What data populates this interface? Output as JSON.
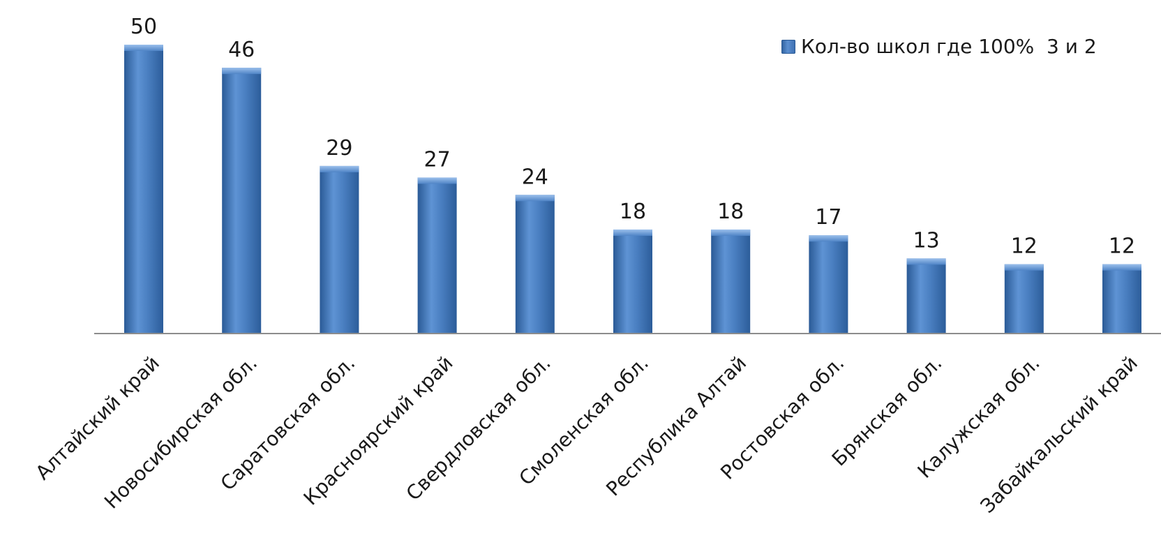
{
  "chart_data": {
    "type": "bar",
    "categories": [
      "Алтайский край",
      "Новосибирская обл.",
      "Саратовская обл.",
      "Красноярский край",
      "Свердловская обл.",
      "Смоленская обл.",
      "Республика Алтай",
      "Ростовская обл.",
      "Брянская обл.",
      "Калужская обл.",
      "Забайкальский край"
    ],
    "series": [
      {
        "name": "Кол-во школ где 100%  3 и 2",
        "values": [
          50,
          46,
          29,
          27,
          24,
          18,
          18,
          17,
          13,
          12,
          12
        ]
      }
    ],
    "ylim": [
      0,
      50
    ],
    "grid": false,
    "legend": "top-right",
    "bar_color": "#4a7fc1"
  }
}
